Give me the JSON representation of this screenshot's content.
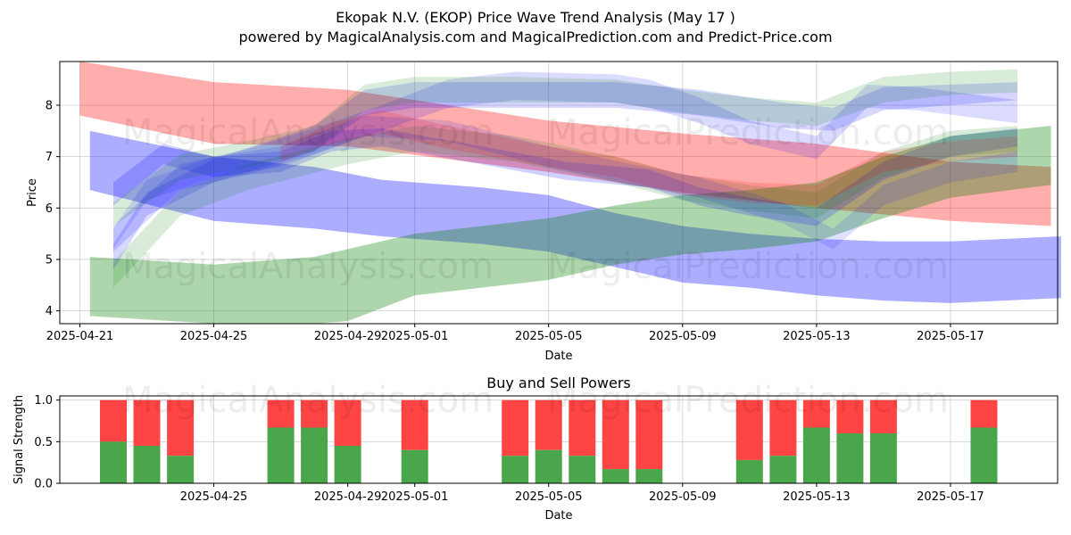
{
  "title_line1": "Ekopak N.V. (EKOP) Price Wave Trend Analysis (May 17 )",
  "title_line2": "powered by MagicalAnalysis.com and MagicalPrediction.com and Predict-Price.com",
  "watermarks": [
    "MagicalAnalysis.com",
    "MagicalPrediction.com"
  ],
  "chart_data": [
    {
      "type": "area",
      "title": "",
      "xlabel": "Date",
      "ylabel": "Price",
      "xlim": [
        -0.6,
        29.2
      ],
      "ylim": [
        3.75,
        8.85
      ],
      "x_ticks": [
        {
          "x": 0,
          "label": "2025-04-21"
        },
        {
          "x": 4,
          "label": "2025-04-25"
        },
        {
          "x": 8,
          "label": "2025-04-29"
        },
        {
          "x": 10,
          "label": "2025-05-01"
        },
        {
          "x": 14,
          "label": "2025-05-05"
        },
        {
          "x": 18,
          "label": "2025-05-09"
        },
        {
          "x": 22,
          "label": "2025-05-13"
        },
        {
          "x": 26,
          "label": "2025-05-17"
        }
      ],
      "y_ticks": [
        4,
        5,
        6,
        7,
        8
      ],
      "grid": true,
      "bands": [
        {
          "color": "#ff0000",
          "opacity": 0.32,
          "x": [
            0,
            4,
            8,
            14,
            18,
            22,
            26,
            29
          ],
          "upper": [
            8.95,
            8.45,
            8.3,
            7.7,
            7.45,
            7.25,
            6.9,
            6.8
          ],
          "lower": [
            7.8,
            7.25,
            7.2,
            6.7,
            6.3,
            6.0,
            5.75,
            5.65
          ]
        },
        {
          "color": "#0000ff",
          "opacity": 0.32,
          "x": [
            0.3,
            4,
            7,
            9,
            12,
            14,
            16,
            18,
            20,
            22,
            24,
            26,
            29.3
          ],
          "upper": [
            7.5,
            7.0,
            6.8,
            6.55,
            6.4,
            6.25,
            5.9,
            5.65,
            5.5,
            5.4,
            5.35,
            5.35,
            5.45
          ],
          "lower": [
            6.35,
            5.75,
            5.6,
            5.45,
            5.3,
            5.15,
            4.85,
            4.55,
            4.45,
            4.3,
            4.2,
            4.15,
            4.25
          ]
        },
        {
          "color": "#008000",
          "opacity": 0.32,
          "x": [
            0.3,
            4,
            7,
            8,
            10,
            12,
            14,
            16,
            18,
            20,
            22,
            24,
            26,
            29
          ],
          "upper": [
            5.05,
            4.9,
            5.05,
            5.2,
            5.5,
            5.65,
            5.8,
            6.05,
            6.25,
            6.35,
            6.5,
            7.0,
            7.4,
            7.6
          ],
          "lower": [
            3.9,
            3.6,
            3.55,
            3.8,
            4.3,
            4.45,
            4.6,
            4.9,
            5.1,
            5.2,
            5.35,
            5.8,
            6.2,
            6.45
          ]
        },
        {
          "color": "#0000ff",
          "opacity": 0.18,
          "x": [
            1.0,
            2.5,
            4,
            6,
            7.5,
            9,
            12,
            14.5,
            17,
            18.5,
            20,
            22,
            24,
            26,
            28
          ],
          "upper": [
            6.5,
            7.25,
            7.0,
            7.1,
            7.5,
            7.55,
            7.2,
            6.9,
            6.75,
            6.4,
            6.2,
            6.0,
            6.9,
            7.4,
            7.55
          ],
          "lower": [
            6.05,
            6.85,
            6.6,
            6.7,
            7.1,
            7.2,
            6.85,
            6.55,
            6.4,
            6.05,
            5.85,
            5.65,
            6.55,
            7.0,
            7.2
          ]
        },
        {
          "color": "#0000ff",
          "opacity": 0.16,
          "x": [
            1.0,
            2,
            4,
            7,
            8.5,
            10,
            14,
            16,
            18.5,
            21,
            22.5,
            24,
            26,
            28
          ],
          "upper": [
            5.3,
            6.3,
            6.95,
            7.6,
            8.3,
            8.45,
            8.45,
            8.45,
            8.3,
            8.05,
            7.95,
            8.35,
            8.4,
            8.45
          ],
          "lower": [
            4.8,
            5.85,
            6.5,
            7.1,
            7.8,
            7.95,
            7.95,
            7.95,
            7.8,
            7.55,
            7.5,
            7.9,
            8.0,
            8.1
          ]
        },
        {
          "color": "#0000ff",
          "opacity": 0.14,
          "x": [
            1.0,
            3,
            5,
            7,
            9,
            11,
            13,
            16,
            17,
            18.5,
            20,
            22,
            23.5,
            25,
            28
          ],
          "upper": [
            5.65,
            6.85,
            7.15,
            7.55,
            8.0,
            8.5,
            8.65,
            8.6,
            8.5,
            8.15,
            7.7,
            7.4,
            8.4,
            8.35,
            8.1
          ],
          "lower": [
            5.15,
            6.35,
            6.65,
            7.05,
            7.5,
            7.95,
            8.1,
            8.05,
            7.95,
            7.65,
            7.25,
            6.95,
            7.95,
            7.9,
            7.65
          ]
        },
        {
          "color": "#008000",
          "opacity": 0.15,
          "x": [
            1.0,
            3,
            5,
            7,
            8.5,
            10,
            13,
            16,
            18,
            20,
            22,
            24,
            26,
            28
          ],
          "upper": [
            6.1,
            7.05,
            7.3,
            7.6,
            8.4,
            8.55,
            8.55,
            8.5,
            8.3,
            8.15,
            8.05,
            8.55,
            8.65,
            8.7
          ],
          "lower": [
            5.65,
            6.55,
            6.8,
            7.1,
            7.9,
            8.05,
            8.05,
            8.05,
            7.85,
            7.7,
            7.6,
            8.05,
            8.2,
            8.25
          ]
        },
        {
          "color": "#008000",
          "opacity": 0.15,
          "x": [
            1.0,
            3,
            5,
            8,
            10,
            13,
            16,
            18,
            20,
            22,
            24,
            26,
            28
          ],
          "upper": [
            4.95,
            6.35,
            6.85,
            7.35,
            7.6,
            7.4,
            7.0,
            6.65,
            6.45,
            6.3,
            7.1,
            7.5,
            7.6
          ],
          "lower": [
            4.45,
            5.85,
            6.35,
            6.85,
            7.1,
            6.9,
            6.5,
            6.15,
            5.95,
            5.8,
            6.6,
            7.0,
            7.1
          ]
        },
        {
          "color": "#ff0000",
          "opacity": 0.15,
          "x": [
            6,
            7.5,
            9,
            11,
            14,
            16,
            18,
            20,
            22,
            24,
            26,
            28
          ],
          "upper": [
            7.2,
            7.65,
            7.9,
            7.6,
            7.2,
            7.0,
            6.65,
            6.5,
            6.45,
            7.1,
            7.3,
            7.4
          ],
          "lower": [
            6.9,
            7.25,
            7.45,
            7.15,
            6.8,
            6.6,
            6.25,
            6.1,
            6.05,
            6.7,
            6.9,
            7.0
          ]
        },
        {
          "color": "#0000ff",
          "opacity": 0.12,
          "x": [
            1.0,
            2,
            4,
            6,
            8.5,
            11,
            14,
            16.5,
            18.5,
            21,
            22.5,
            24,
            26,
            28
          ],
          "upper": [
            5.6,
            6.55,
            7.0,
            7.2,
            7.8,
            7.7,
            7.2,
            6.85,
            6.6,
            6.1,
            5.6,
            6.45,
            6.9,
            7.1
          ],
          "lower": [
            5.2,
            6.15,
            6.6,
            6.8,
            7.4,
            7.3,
            6.8,
            6.45,
            6.2,
            5.7,
            5.2,
            6.05,
            6.5,
            6.7
          ]
        }
      ],
      "watermark": "MagicalAnalysis.com  MagicalPrediction.com"
    },
    {
      "type": "bar",
      "title": "Buy and Sell Powers",
      "xlabel": "Date",
      "ylabel": "Signal Strength",
      "ylim": [
        0,
        1.05
      ],
      "y_ticks": [
        "0.0",
        "0.5",
        "1.0"
      ],
      "x_ticks": [
        {
          "x": 4,
          "label": "2025-04-25"
        },
        {
          "x": 8,
          "label": "2025-04-29"
        },
        {
          "x": 10,
          "label": "2025-05-01"
        },
        {
          "x": 14,
          "label": "2025-05-05"
        },
        {
          "x": 18,
          "label": "2025-05-09"
        },
        {
          "x": 22,
          "label": "2025-05-13"
        },
        {
          "x": 26,
          "label": "2025-05-17"
        }
      ],
      "buy_color": "#4aa64a",
      "sell_color": "#ff4444",
      "bars": [
        {
          "x": 1,
          "buy": 0.5
        },
        {
          "x": 2,
          "buy": 0.45
        },
        {
          "x": 3,
          "buy": 0.33
        },
        {
          "x": 6,
          "buy": 0.67
        },
        {
          "x": 7,
          "buy": 0.67
        },
        {
          "x": 8,
          "buy": 0.45
        },
        {
          "x": 10,
          "buy": 0.4
        },
        {
          "x": 13,
          "buy": 0.33
        },
        {
          "x": 14,
          "buy": 0.4
        },
        {
          "x": 15,
          "buy": 0.33
        },
        {
          "x": 16,
          "buy": 0.17
        },
        {
          "x": 17,
          "buy": 0.17
        },
        {
          "x": 20,
          "buy": 0.28
        },
        {
          "x": 21,
          "buy": 0.33
        },
        {
          "x": 22,
          "buy": 0.67
        },
        {
          "x": 23,
          "buy": 0.6
        },
        {
          "x": 24,
          "buy": 0.6
        },
        {
          "x": 27,
          "buy": 0.67
        }
      ]
    }
  ]
}
